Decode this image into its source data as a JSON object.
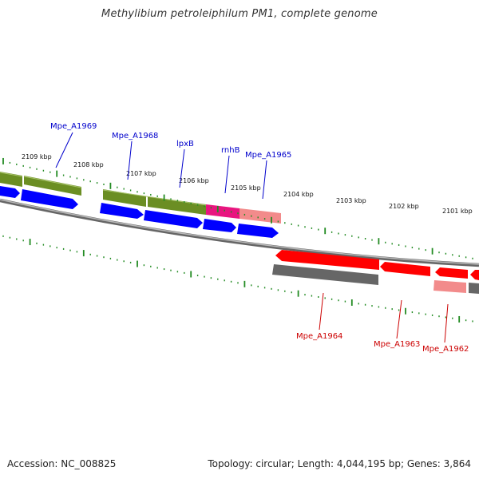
{
  "title": "Methylibium petroleiphilum PM1, complete genome",
  "footer": {
    "accession": "Accession: NC_008825",
    "stats": "Topology: circular; Length: 4,044,195 bp; Genes: 3,864"
  },
  "colors": {
    "plus_label": "#0000cc",
    "minus_label": "#cc0000",
    "tick": "#228b22",
    "backbone": "#888888"
  },
  "ticks": [
    "2109 kbp",
    "2108 kbp",
    "2107 kbp",
    "2106 kbp",
    "2105 kbp",
    "2104 kbp",
    "2103 kbp",
    "2102 kbp",
    "2101 kbp"
  ],
  "plus_labels": [
    "Mpe_A1969",
    "Mpe_A1968",
    "lpxB",
    "rnhB",
    "Mpe_A1965"
  ],
  "minus_labels": [
    "Mpe_A1964",
    "Mpe_A1963",
    "Mpe_A1962"
  ]
}
